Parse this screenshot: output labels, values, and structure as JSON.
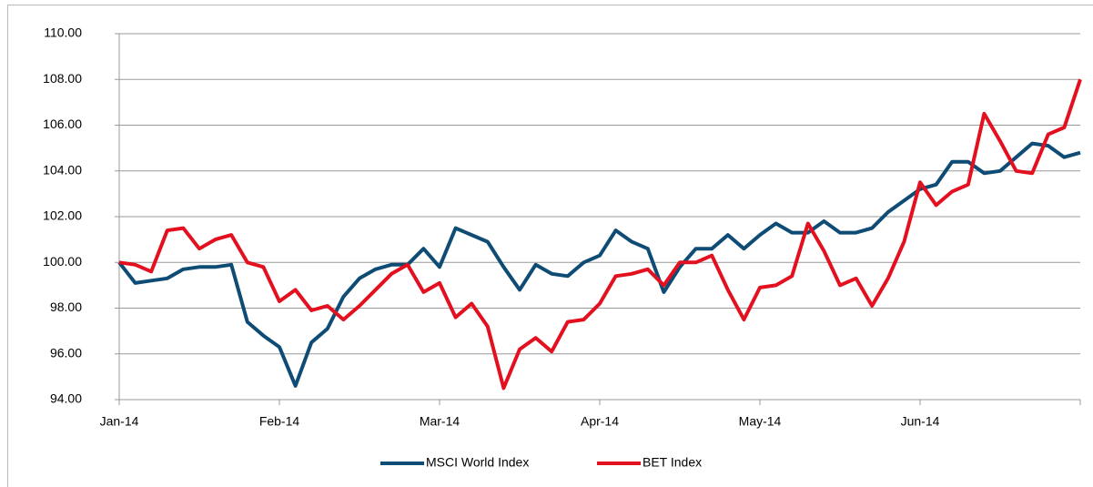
{
  "chart_data": {
    "type": "line",
    "categories": [
      "Jan-14",
      null,
      null,
      null,
      null,
      null,
      null,
      null,
      null,
      null,
      "Feb-14",
      null,
      null,
      null,
      null,
      null,
      null,
      null,
      null,
      null,
      "Mar-14",
      null,
      null,
      null,
      null,
      null,
      null,
      null,
      null,
      null,
      "Apr-14",
      null,
      null,
      null,
      null,
      null,
      null,
      null,
      null,
      null,
      "May-14",
      null,
      null,
      null,
      null,
      null,
      null,
      null,
      null,
      null,
      "Jun-14",
      null,
      null,
      null,
      null,
      null,
      null,
      null,
      null,
      null,
      null
    ],
    "series": [
      {
        "name": "MSCI World Index",
        "color": "#0f4c75",
        "values": [
          100.0,
          99.1,
          99.2,
          99.3,
          99.7,
          99.8,
          99.8,
          99.9,
          97.4,
          96.8,
          96.3,
          94.6,
          96.5,
          97.1,
          98.5,
          99.3,
          99.7,
          99.9,
          99.9,
          100.6,
          99.8,
          101.5,
          101.2,
          100.9,
          99.8,
          98.8,
          99.9,
          99.5,
          99.4,
          100.0,
          100.3,
          101.4,
          100.9,
          100.6,
          98.7,
          99.8,
          100.6,
          100.6,
          101.2,
          100.6,
          101.2,
          101.7,
          101.3,
          101.3,
          101.8,
          101.3,
          101.3,
          101.5,
          102.2,
          102.7,
          103.2,
          103.4,
          104.4,
          104.4,
          103.9,
          104.0,
          104.6,
          105.2,
          105.1,
          104.6,
          104.8
        ]
      },
      {
        "name": "BET Index",
        "color": "#e3101f",
        "values": [
          100.0,
          99.9,
          99.6,
          101.4,
          101.5,
          100.6,
          101.0,
          101.2,
          100.0,
          99.8,
          98.3,
          98.8,
          97.9,
          98.1,
          97.5,
          98.1,
          98.8,
          99.5,
          99.9,
          98.7,
          99.1,
          97.6,
          98.2,
          97.2,
          94.5,
          96.2,
          96.7,
          96.1,
          97.4,
          97.5,
          98.2,
          99.4,
          99.5,
          99.7,
          99.0,
          100.0,
          100.0,
          100.3,
          98.8,
          97.5,
          98.9,
          99.0,
          99.4,
          101.7,
          100.5,
          99.0,
          99.3,
          98.1,
          99.3,
          100.9,
          103.5,
          102.5,
          103.1,
          103.4,
          106.5,
          105.3,
          104.0,
          103.9,
          105.6,
          105.9,
          108.0
        ]
      }
    ],
    "ylim": [
      94,
      110
    ],
    "yticks": [
      {
        "value": 94,
        "label": "94.00"
      },
      {
        "value": 96,
        "label": "96.00"
      },
      {
        "value": 98,
        "label": "98.00"
      },
      {
        "value": 100,
        "label": "100.00"
      },
      {
        "value": 102,
        "label": "102.00"
      },
      {
        "value": 104,
        "label": "104.00"
      },
      {
        "value": 106,
        "label": "106.00"
      },
      {
        "value": 108,
        "label": "108.00"
      },
      {
        "value": 110,
        "label": "110.00"
      }
    ],
    "grid": true,
    "legend": "bottom"
  }
}
